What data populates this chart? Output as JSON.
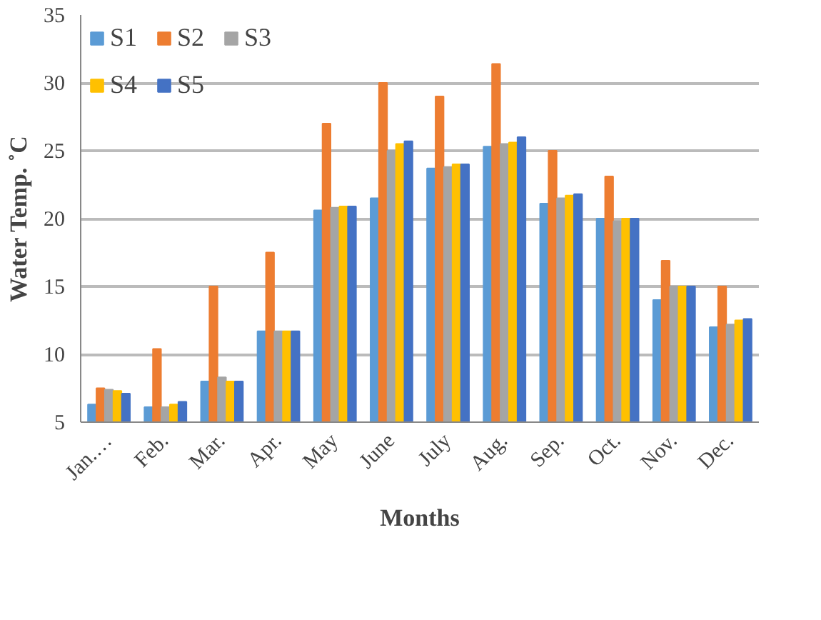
{
  "chart_data": {
    "type": "bar",
    "xlabel": "Months",
    "ylabel": "Water Temp. ˚C",
    "categories": [
      "Jan.…",
      "Feb.",
      "Mar.",
      "Apr.",
      "May",
      "June",
      "July",
      "Aug.",
      "Sep.",
      "Oct.",
      "Nov.",
      "Dec."
    ],
    "series": [
      {
        "name": "S1",
        "color": "#5b9bd5",
        "values": [
          6.3,
          6.1,
          8.0,
          11.7,
          20.6,
          21.5,
          23.7,
          25.3,
          21.1,
          20.0,
          14.0,
          12.0
        ]
      },
      {
        "name": "S2",
        "color": "#ed7d31",
        "values": [
          7.5,
          10.4,
          15.0,
          17.5,
          27.0,
          30.0,
          29.0,
          31.4,
          25.0,
          23.1,
          16.9,
          15.0
        ]
      },
      {
        "name": "S3",
        "color": "#a5a5a5",
        "values": [
          7.4,
          6.1,
          8.3,
          11.7,
          20.8,
          25.0,
          23.8,
          25.5,
          21.5,
          19.8,
          15.0,
          12.2
        ]
      },
      {
        "name": "S4",
        "color": "#ffc000",
        "values": [
          7.3,
          6.3,
          8.0,
          11.7,
          20.9,
          25.5,
          24.0,
          25.6,
          21.7,
          20.0,
          15.0,
          12.5
        ]
      },
      {
        "name": "S5",
        "color": "#4472c4",
        "values": [
          7.1,
          6.5,
          8.0,
          11.7,
          20.9,
          25.7,
          24.0,
          26.0,
          21.8,
          20.0,
          15.0,
          12.6
        ]
      }
    ],
    "ylim": [
      5,
      35
    ],
    "yticks": [
      5,
      10,
      15,
      20,
      25,
      30,
      35
    ],
    "grid": "y",
    "legend": "top left"
  }
}
